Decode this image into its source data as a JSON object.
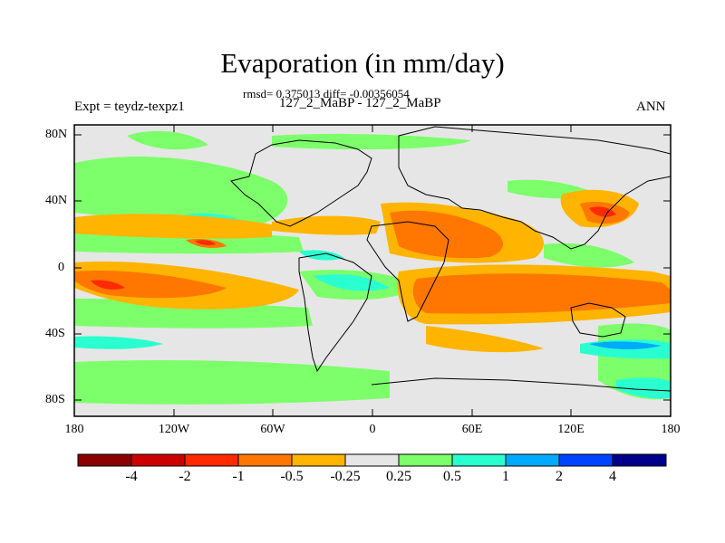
{
  "title": "Evaporation (in mm/day)",
  "stats_line": "rmsd= 0.375013 diff= -0.00356054",
  "comparison": "127_2_MaBP - 127_2_MaBP",
  "experiment": "Expt = teydz-texpz1",
  "season": "ANN",
  "lat_ticks": [
    "80N",
    "40N",
    "0",
    "40S",
    "80S"
  ],
  "lon_ticks": [
    "180",
    "120W",
    "60W",
    "0",
    "60E",
    "120E",
    "180"
  ],
  "colorbar": {
    "labels": [
      "-4",
      "-2",
      "-1",
      "-0.5",
      "-0.25",
      "0.25",
      "0.5",
      "1",
      "2",
      "4"
    ],
    "colors": [
      "#8b0000",
      "#cc0000",
      "#ff2a00",
      "#ff7700",
      "#ffb400",
      "#e6e6e6",
      "#7dff6b",
      "#2affd0",
      "#00aaff",
      "#0044ff",
      "#00008b"
    ]
  }
}
